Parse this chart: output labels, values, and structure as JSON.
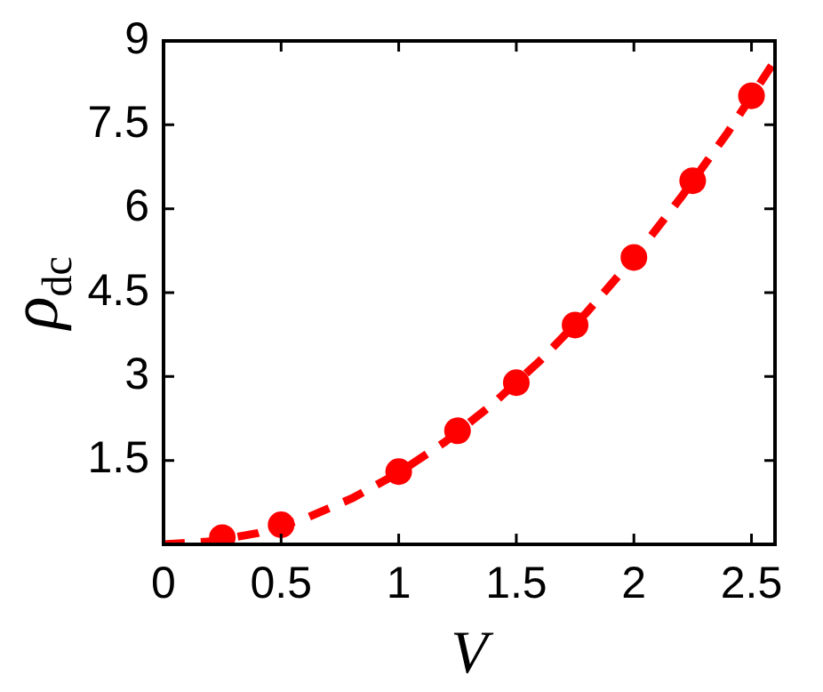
{
  "chart_data": {
    "type": "scatter",
    "xlabel": "V",
    "ylabel": "ρ$_{dc}$",
    "xlim": [
      0,
      2.6
    ],
    "ylim": [
      0,
      9
    ],
    "xticks": [
      0,
      0.5,
      1,
      1.5,
      2,
      2.5
    ],
    "yticks": [
      1.5,
      3,
      4.5,
      6,
      7.5,
      9
    ],
    "grid": false,
    "legend": false,
    "series": [
      {
        "color": "#ff0000",
        "marker": "circle",
        "x": [
          0.25,
          0.5,
          1,
          1.25,
          1.5,
          1.75,
          2,
          2.25,
          2.5
        ],
        "values": [
          0.12,
          0.35,
          1.3,
          2.03,
          2.89,
          3.92,
          5.13,
          6.5,
          8.02
        ]
      },
      {
        "type": "line",
        "color": "#ff0000",
        "marker": "none",
        "line_style": "dashed",
        "x": [
          0,
          0.2,
          0.4,
          0.6,
          0.8,
          1,
          1.2,
          1.4,
          1.6,
          1.8,
          2,
          2.2,
          2.4,
          2.6
        ],
        "values": [
          0,
          0.05,
          0.2,
          0.46,
          0.82,
          1.28,
          1.84,
          2.51,
          3.28,
          4.15,
          5.12,
          6.2,
          7.37,
          8.65
        ]
      }
    ]
  }
}
